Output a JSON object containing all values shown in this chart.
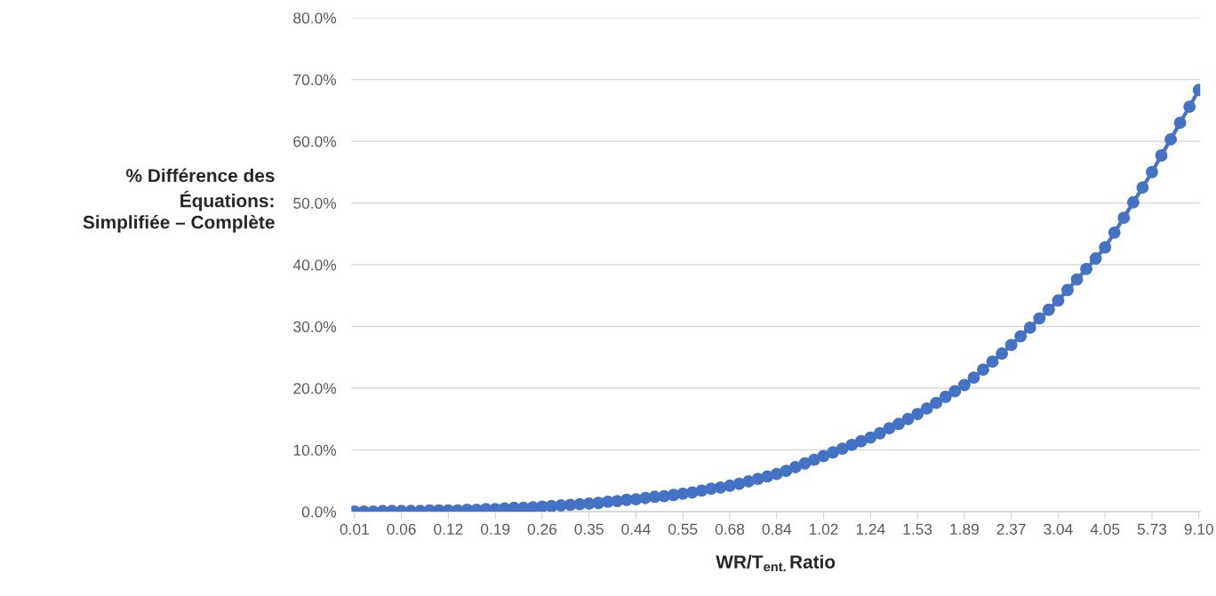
{
  "chart_data": {
    "type": "line",
    "xlabel": "WR/T$_{ent.}$Ratio",
    "ylabel": "% Différence des\nÉquations:\nSimplifiée – Complète",
    "categories": [
      "0.01",
      null,
      null,
      null,
      null,
      "0.06",
      null,
      null,
      null,
      null,
      "0.12",
      null,
      null,
      null,
      null,
      "0.19",
      null,
      null,
      null,
      null,
      "0.26",
      null,
      null,
      null,
      null,
      "0.35",
      null,
      null,
      null,
      null,
      "0.44",
      null,
      null,
      null,
      null,
      "0.55",
      null,
      null,
      null,
      null,
      "0.68",
      null,
      null,
      null,
      null,
      "0.84",
      null,
      null,
      null,
      null,
      "1.02",
      null,
      null,
      null,
      null,
      "1.24",
      null,
      null,
      null,
      null,
      "1.53",
      null,
      null,
      null,
      null,
      "1.89",
      null,
      null,
      null,
      null,
      "2.37",
      null,
      null,
      null,
      null,
      "3.04",
      null,
      null,
      null,
      null,
      "4.05",
      null,
      null,
      null,
      null,
      "5.73",
      null,
      null,
      null,
      null,
      "9.10"
    ],
    "series": [
      {
        "color": "#4472c4",
        "values": [
          0.0,
          0.0,
          0.0,
          0.1,
          0.1,
          0.1,
          0.1,
          0.1,
          0.2,
          0.2,
          0.2,
          0.2,
          0.3,
          0.3,
          0.4,
          0.4,
          0.5,
          0.6,
          0.6,
          0.7,
          0.8,
          0.9,
          1.0,
          1.1,
          1.2,
          1.3,
          1.4,
          1.6,
          1.7,
          1.9,
          2.0,
          2.2,
          2.4,
          2.5,
          2.7,
          2.9,
          3.1,
          3.4,
          3.7,
          3.9,
          4.2,
          4.5,
          4.9,
          5.3,
          5.7,
          6.1,
          6.6,
          7.2,
          7.8,
          8.4,
          9.0,
          9.6,
          10.2,
          10.8,
          11.4,
          12.0,
          12.7,
          13.5,
          14.2,
          15.0,
          15.8,
          16.7,
          17.6,
          18.6,
          19.5,
          20.5,
          21.7,
          23.0,
          24.3,
          25.6,
          27.0,
          28.4,
          29.8,
          31.3,
          32.7,
          34.2,
          35.9,
          37.6,
          39.3,
          41.0,
          42.8,
          45.2,
          47.6,
          50.1,
          52.5,
          55.0,
          57.7,
          60.3,
          63.0,
          65.6,
          68.3
        ]
      }
    ],
    "ylim": [
      0,
      80
    ],
    "yticks": [
      {
        "value": 0,
        "label": "0.0%"
      },
      {
        "value": 10,
        "label": "10.0%"
      },
      {
        "value": 20,
        "label": "20.0%"
      },
      {
        "value": 30,
        "label": "30.0%"
      },
      {
        "value": 40,
        "label": "40.0%"
      },
      {
        "value": 50,
        "label": "50.0%"
      },
      {
        "value": 60,
        "label": "60.0%"
      },
      {
        "value": 70,
        "label": "70.0%"
      },
      {
        "value": 80,
        "label": "80.0%"
      }
    ],
    "grid": "y",
    "marker": "circle",
    "line_style": "solid"
  }
}
